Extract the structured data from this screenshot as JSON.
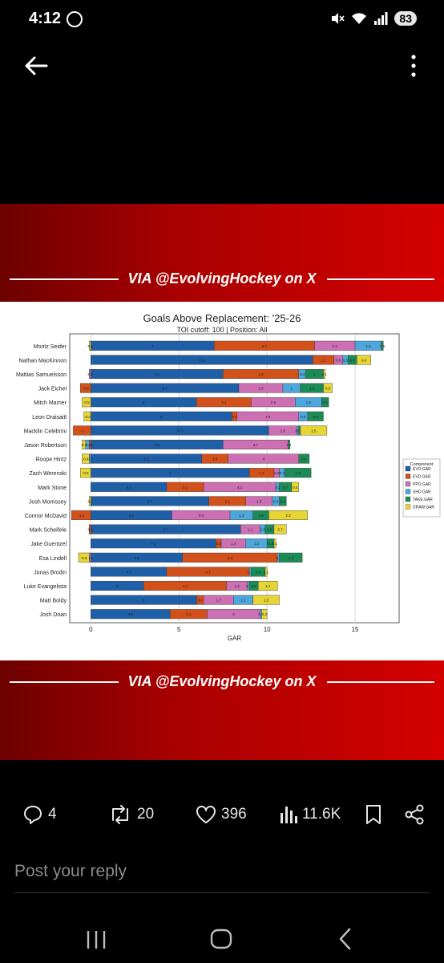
{
  "status": {
    "time": "4:12",
    "battery": "83"
  },
  "banner": {
    "text": "VIA @EvolvingHockey on X"
  },
  "chart_data": {
    "type": "bar",
    "stacked": true,
    "orientation": "horizontal",
    "title": "Goals Above Replacement: '25-26",
    "subtitle": "TOI cutoff: 100 | Position: All",
    "xlabel": "GAR",
    "ylabel": "",
    "xlim": [
      -1.2,
      17.5
    ],
    "xticks": [
      0,
      5,
      10,
      15
    ],
    "grid": true,
    "legend_title": "Component",
    "legend_position": "right",
    "categories": [
      "Moritz Seider",
      "Nathan MacKinnon",
      "Mattias Samuelsson",
      "Jack Eichel",
      "Mitch Marner",
      "Leon Draisaitl",
      "Macklin Celebrini",
      "Jason Robertson",
      "Roope Hintz",
      "Zach Werenski",
      "Mark Stone",
      "Josh Morrissey",
      "Connor McDavid",
      "Mark Scheifele",
      "Jake Guentzel",
      "Esa Lindell",
      "Jonas Brodin",
      "Luke Evangelista",
      "Matt Boldy",
      "Josh Doan"
    ],
    "series": [
      {
        "name": "EVO.GAR",
        "color": "#1f5fa8",
        "values": [
          7,
          12.6,
          7.5,
          8.4,
          6,
          8,
          10.1,
          7.5,
          6.3,
          9,
          4.3,
          6.7,
          4.6,
          8.5,
          7.1,
          5.2,
          4.3,
          3,
          6,
          4.5
        ]
      },
      {
        "name": "EVD.GAR",
        "color": "#d2501a",
        "values": [
          5.7,
          1.2,
          4.3,
          -0.6,
          3.1,
          0.3,
          -1,
          -0.1,
          1.5,
          1.4,
          2.1,
          2.1,
          -1.1,
          -0.1,
          0.3,
          5.4,
          4.7,
          4.7,
          0.4,
          2.1
        ]
      },
      {
        "name": "PPO.GAR",
        "color": "#cc6fb3",
        "values": [
          2.3,
          0.5,
          -0.1,
          2.5,
          2.5,
          3.5,
          1.6,
          3.7,
          4,
          0.3,
          4.1,
          1.5,
          3.3,
          1.1,
          1.4,
          -0.1,
          0,
          1.2,
          1.7,
          3
        ]
      },
      {
        "name": "SHD.GAR",
        "color": "#4da6dc",
        "values": [
          1.5,
          0.3,
          0.4,
          1,
          1.5,
          0.5,
          0.1,
          -0.2,
          -0.1,
          0.3,
          0.2,
          0.4,
          1.3,
          0.3,
          1.2,
          0.1,
          0.1,
          0.1,
          1.1,
          0.1
        ]
      },
      {
        "name": "TAKE.GAR",
        "color": "#1b8c55",
        "values": [
          0.1,
          0.5,
          1,
          1.3,
          0.4,
          0.9,
          0.1,
          0.1,
          0.6,
          1.5,
          0.7,
          0.4,
          0.9,
          0.5,
          0.4,
          1.3,
          0.8,
          0.5,
          0,
          0
        ]
      },
      {
        "name": "DRAW.GAR",
        "color": "#e6d534",
        "values": [
          -0.1,
          0.8,
          0.1,
          0.5,
          -0.5,
          -0.4,
          1.5,
          -0.2,
          -0.4,
          -0.6,
          0.4,
          -0.1,
          2.2,
          0.7,
          0.1,
          -0.6,
          0.1,
          1.1,
          1.5,
          0.3
        ]
      }
    ]
  },
  "actions": {
    "replies": "4",
    "reposts": "20",
    "likes": "396",
    "views": "11.6K"
  },
  "reply": {
    "placeholder": "Post your reply"
  }
}
